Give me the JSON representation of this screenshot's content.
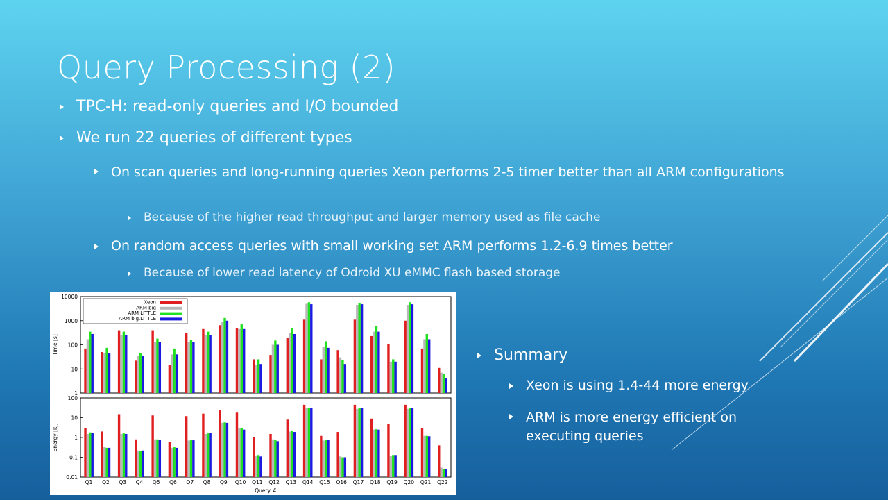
{
  "slide": {
    "title": "Query Processing (2)",
    "bullets": [
      "TPC-H: read-only queries and I/O bounded",
      "We run 22 queries of different types",
      "On scan queries and long-running queries Xeon performs 2-5 timer better than all ARM configurations",
      "Because of the higher read throughput and larger memory used as file cache",
      "On random access queries with small working set ARM performs 1.2-6.9 times better",
      "Because of lower read latency of Odroid XU eMMC flash based storage"
    ],
    "summary": {
      "heading": "Summary",
      "items": [
        "Xeon is using 1.4-44 more energy",
        "ARM is more energy efficient on executing queries"
      ]
    }
  },
  "chart_data": {
    "type": "bar",
    "categories": [
      "Q1",
      "Q2",
      "Q3",
      "Q4",
      "Q5",
      "Q6",
      "Q7",
      "Q8",
      "Q9",
      "Q10",
      "Q11",
      "Q12",
      "Q13",
      "Q14",
      "Q15",
      "Q16",
      "Q17",
      "Q18",
      "Q19",
      "Q20",
      "Q21",
      "Q22"
    ],
    "xlabel": "Query #",
    "legend": [
      "Xeon",
      "ARM big",
      "ARM LITTLE",
      "ARM big.LITTLE"
    ],
    "legend_position": "top-left",
    "colors": [
      "#e02020",
      "#b8b8b8",
      "#22e022",
      "#1a1ae0"
    ],
    "panels": [
      {
        "ylabel": "Time [s]",
        "scale": "log",
        "ylim": [
          1,
          10000
        ],
        "ticks": [
          "1",
          "10",
          "100",
          "1000",
          "10000"
        ],
        "series": [
          {
            "name": "Xeon",
            "values": [
              70,
              50,
              400,
              22,
              400,
              15,
              320,
              450,
              650,
              500,
              25,
              38,
              200,
              1100,
              25,
              60,
              1100,
              230,
              110,
              1000,
              70,
              11
            ]
          },
          {
            "name": "ARM big",
            "values": [
              170,
              45,
              250,
              35,
              130,
              40,
              130,
              250,
              900,
              450,
              15,
              100,
              320,
              5000,
              80,
              30,
              4500,
              350,
              20,
              4500,
              170,
              7
            ]
          },
          {
            "name": "ARM LITTLE",
            "values": [
              350,
              75,
              350,
              45,
              180,
              70,
              160,
              350,
              1300,
              700,
              25,
              150,
              500,
              5800,
              140,
              23,
              5500,
              600,
              25,
              5800,
              280,
              6
            ]
          },
          {
            "name": "ARM big.LITTLE",
            "values": [
              280,
              45,
              250,
              35,
              130,
              40,
              130,
              250,
              1000,
              450,
              16,
              100,
              280,
              4800,
              75,
              16,
              4800,
              350,
              20,
              4800,
              170,
              4
            ]
          }
        ]
      },
      {
        "ylabel": "Energy [kJ]",
        "scale": "log",
        "ylim": [
          0.01,
          100
        ],
        "ticks": [
          "0.01",
          "0.1",
          "1",
          "10",
          "100"
        ],
        "series": [
          {
            "name": "Xeon",
            "values": [
              3,
              2,
              15,
              0.8,
              13,
              0.6,
              12,
              16,
              25,
              18,
              1,
              1.5,
              8,
              45,
              1.2,
              1.9,
              45,
              9,
              5,
              45,
              3,
              0.4
            ]
          },
          {
            "name": "ARM big",
            "values": [
              1.5,
              0.35,
              1.5,
              0.22,
              0.8,
              0.3,
              0.7,
              1.5,
              5.5,
              3,
              0.12,
              0.8,
              2,
              30,
              0.7,
              0.11,
              28,
              2.5,
              0.12,
              28,
              1.2,
              0.03
            ]
          },
          {
            "name": "ARM LITTLE",
            "values": [
              1.8,
              0.3,
              1.6,
              0.2,
              0.8,
              0.32,
              0.75,
              1.6,
              5.8,
              3,
              0.13,
              0.75,
              2.1,
              32,
              0.75,
              0.1,
              30,
              2.6,
              0.13,
              30,
              1.2,
              0.025
            ]
          },
          {
            "name": "ARM big.LITTLE",
            "values": [
              1.7,
              0.3,
              1.5,
              0.22,
              0.75,
              0.3,
              0.72,
              1.7,
              5.5,
              2.5,
              0.11,
              0.65,
              1.9,
              30,
              0.75,
              0.1,
              30,
              2.5,
              0.13,
              31,
              1.15,
              0.025
            ]
          }
        ]
      }
    ]
  }
}
